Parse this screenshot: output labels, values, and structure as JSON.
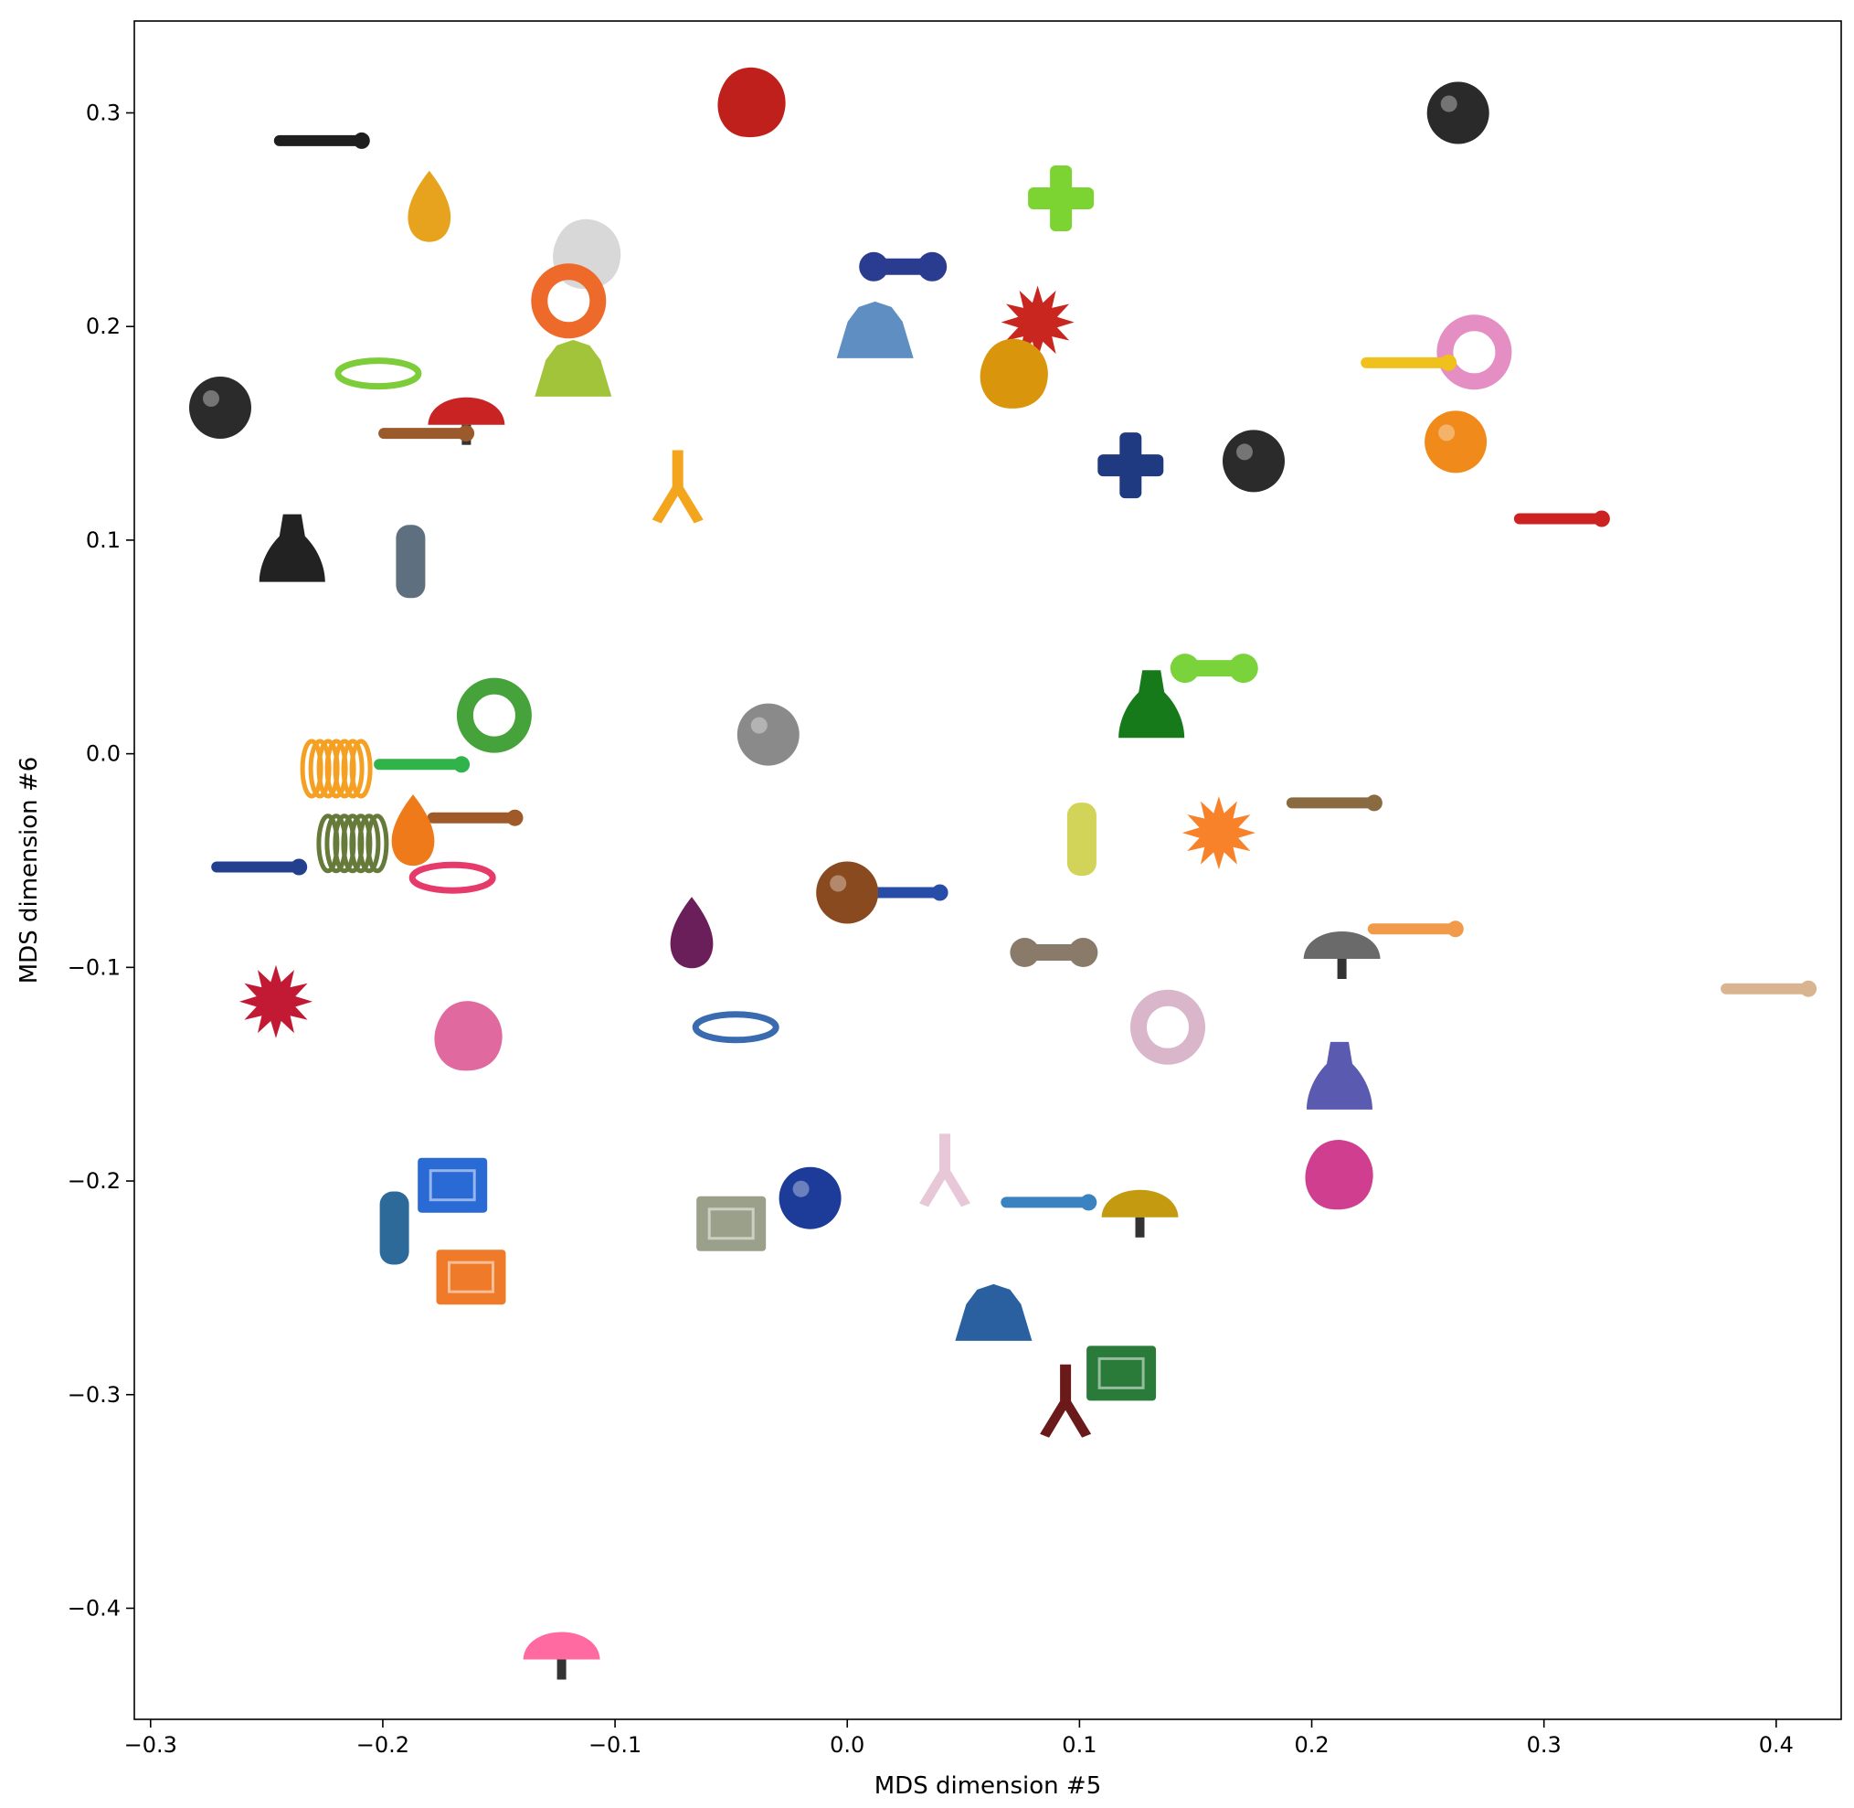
{
  "chart_data": {
    "type": "scatter",
    "title": "",
    "xlabel": "MDS dimension #5",
    "ylabel": "MDS dimension #6",
    "xlim": [
      -0.307,
      0.428
    ],
    "ylim": [
      -0.452,
      0.343
    ],
    "grid": false,
    "legend": "none",
    "marker_style": "object photographs (toy thumbnails)",
    "xticks": [
      {
        "value": -0.3,
        "label": "−0.3"
      },
      {
        "value": -0.2,
        "label": "−0.2"
      },
      {
        "value": -0.1,
        "label": "−0.1"
      },
      {
        "value": 0.0,
        "label": "0.0"
      },
      {
        "value": 0.1,
        "label": "0.1"
      },
      {
        "value": 0.2,
        "label": "0.2"
      },
      {
        "value": 0.3,
        "label": "0.3"
      },
      {
        "value": 0.4,
        "label": "0.4"
      }
    ],
    "yticks": [
      {
        "value": 0.3,
        "label": "0.3"
      },
      {
        "value": 0.2,
        "label": "0.2"
      },
      {
        "value": 0.1,
        "label": "0.1"
      },
      {
        "value": 0.0,
        "label": "0.0"
      },
      {
        "value": -0.1,
        "label": "−0.1"
      },
      {
        "value": -0.2,
        "label": "−0.2"
      },
      {
        "value": -0.3,
        "label": "−0.3"
      },
      {
        "value": -0.4,
        "label": "−0.4"
      }
    ],
    "points": [
      {
        "x": -0.041,
        "y": 0.305,
        "color": "#c0201c",
        "shape": "blob"
      },
      {
        "x": 0.263,
        "y": 0.3,
        "color": "#2a2a2a",
        "shape": "ball"
      },
      {
        "x": -0.228,
        "y": 0.287,
        "color": "#1e1e1e",
        "shape": "stick"
      },
      {
        "x": -0.18,
        "y": 0.255,
        "color": "#e7a31d",
        "shape": "drop"
      },
      {
        "x": 0.092,
        "y": 0.26,
        "color": "#7bd431",
        "shape": "cross"
      },
      {
        "x": -0.112,
        "y": 0.234,
        "color": "#d8d8d8",
        "shape": "dome"
      },
      {
        "x": -0.12,
        "y": 0.212,
        "color": "#ee6a2a",
        "shape": "ring"
      },
      {
        "x": 0.024,
        "y": 0.228,
        "color": "#2a3c8f",
        "shape": "bone"
      },
      {
        "x": 0.012,
        "y": 0.198,
        "color": "#5f8fc2",
        "shape": "mop"
      },
      {
        "x": 0.082,
        "y": 0.202,
        "color": "#c9261f",
        "shape": "spiky"
      },
      {
        "x": 0.072,
        "y": 0.178,
        "color": "#d9960d",
        "shape": "blob"
      },
      {
        "x": 0.27,
        "y": 0.188,
        "color": "#e48ec3",
        "shape": "ring"
      },
      {
        "x": 0.24,
        "y": 0.183,
        "color": "#f0c01c",
        "shape": "stick"
      },
      {
        "x": -0.202,
        "y": 0.178,
        "color": "#7dcc3a",
        "shape": "clip"
      },
      {
        "x": -0.118,
        "y": 0.18,
        "color": "#a2c43a",
        "shape": "mop"
      },
      {
        "x": -0.27,
        "y": 0.162,
        "color": "#2b2b2b",
        "shape": "ball"
      },
      {
        "x": -0.164,
        "y": 0.16,
        "color": "#c92323",
        "shape": "fan"
      },
      {
        "x": -0.183,
        "y": 0.15,
        "color": "#9a5a2c",
        "shape": "stick"
      },
      {
        "x": 0.262,
        "y": 0.146,
        "color": "#f08a1a",
        "shape": "ball"
      },
      {
        "x": 0.175,
        "y": 0.137,
        "color": "#2b2b2b",
        "shape": "ball"
      },
      {
        "x": 0.122,
        "y": 0.135,
        "color": "#1f3a80",
        "shape": "cross"
      },
      {
        "x": -0.073,
        "y": 0.125,
        "color": "#f3a51d",
        "shape": "claw"
      },
      {
        "x": 0.306,
        "y": 0.11,
        "color": "#cc2222",
        "shape": "stick"
      },
      {
        "x": -0.239,
        "y": 0.095,
        "color": "#222222",
        "shape": "bell"
      },
      {
        "x": -0.188,
        "y": 0.09,
        "color": "#5e6f80",
        "shape": "tube"
      },
      {
        "x": 0.158,
        "y": 0.04,
        "color": "#7ad33b",
        "shape": "bone"
      },
      {
        "x": 0.131,
        "y": 0.022,
        "color": "#177a1a",
        "shape": "bell"
      },
      {
        "x": -0.152,
        "y": 0.018,
        "color": "#46a23a",
        "shape": "ring"
      },
      {
        "x": -0.034,
        "y": 0.009,
        "color": "#8a8a8a",
        "shape": "ball"
      },
      {
        "x": -0.185,
        "y": -0.005,
        "color": "#2fb34a",
        "shape": "stick"
      },
      {
        "x": -0.22,
        "y": -0.007,
        "color": "#f5a022",
        "shape": "spring"
      },
      {
        "x": 0.208,
        "y": -0.023,
        "color": "#8a6a40",
        "shape": "stick"
      },
      {
        "x": 0.101,
        "y": -0.04,
        "color": "#d2d45a",
        "shape": "tube"
      },
      {
        "x": 0.16,
        "y": -0.037,
        "color": "#f7822a",
        "shape": "spiky"
      },
      {
        "x": -0.162,
        "y": -0.03,
        "color": "#a05a2a",
        "shape": "stick"
      },
      {
        "x": -0.187,
        "y": -0.037,
        "color": "#ee7a1a",
        "shape": "drop"
      },
      {
        "x": -0.213,
        "y": -0.042,
        "color": "#667a3a",
        "shape": "spring"
      },
      {
        "x": -0.255,
        "y": -0.053,
        "color": "#23408f",
        "shape": "stick"
      },
      {
        "x": -0.17,
        "y": -0.058,
        "color": "#e63a6a",
        "shape": "clip"
      },
      {
        "x": 0.021,
        "y": -0.065,
        "color": "#284da8",
        "shape": "stick"
      },
      {
        "x": 0.0,
        "y": -0.065,
        "color": "#8a4a20",
        "shape": "ball"
      },
      {
        "x": -0.067,
        "y": -0.085,
        "color": "#6a1e5a",
        "shape": "drop"
      },
      {
        "x": 0.243,
        "y": -0.082,
        "color": "#f09a4a",
        "shape": "stick"
      },
      {
        "x": 0.213,
        "y": -0.09,
        "color": "#6a6a6a",
        "shape": "fan"
      },
      {
        "x": 0.089,
        "y": -0.093,
        "color": "#8a7a6a",
        "shape": "bone"
      },
      {
        "x": 0.395,
        "y": -0.11,
        "color": "#d8b490",
        "shape": "stick"
      },
      {
        "x": -0.246,
        "y": -0.116,
        "color": "#c21a35",
        "shape": "spiky"
      },
      {
        "x": 0.138,
        "y": -0.128,
        "color": "#d9b6c9",
        "shape": "ring"
      },
      {
        "x": -0.163,
        "y": -0.132,
        "color": "#e06aa0",
        "shape": "blob"
      },
      {
        "x": -0.048,
        "y": -0.128,
        "color": "#3a6ab0",
        "shape": "clip"
      },
      {
        "x": 0.212,
        "y": -0.152,
        "color": "#5a5ab0",
        "shape": "bell"
      },
      {
        "x": 0.212,
        "y": -0.197,
        "color": "#d03e8f",
        "shape": "blob"
      },
      {
        "x": -0.17,
        "y": -0.202,
        "color": "#2a6ad4",
        "shape": "block"
      },
      {
        "x": -0.195,
        "y": -0.222,
        "color": "#2d6a9a",
        "shape": "tube"
      },
      {
        "x": 0.042,
        "y": -0.195,
        "color": "#e8c8d8",
        "shape": "claw"
      },
      {
        "x": 0.085,
        "y": -0.21,
        "color": "#3a82c0",
        "shape": "stick"
      },
      {
        "x": 0.126,
        "y": -0.211,
        "color": "#c49a10",
        "shape": "fan"
      },
      {
        "x": -0.016,
        "y": -0.208,
        "color": "#1d3c9a",
        "shape": "ball"
      },
      {
        "x": -0.05,
        "y": -0.22,
        "color": "#9aa08a",
        "shape": "block"
      },
      {
        "x": -0.162,
        "y": -0.245,
        "color": "#ee7a2a",
        "shape": "block"
      },
      {
        "x": 0.063,
        "y": -0.262,
        "color": "#2a60a0",
        "shape": "mop"
      },
      {
        "x": 0.118,
        "y": -0.29,
        "color": "#2a7a3a",
        "shape": "block"
      },
      {
        "x": 0.094,
        "y": -0.303,
        "color": "#6a1a1a",
        "shape": "claw"
      },
      {
        "x": -0.123,
        "y": -0.418,
        "color": "#ff6aa0",
        "shape": "fan"
      }
    ]
  }
}
